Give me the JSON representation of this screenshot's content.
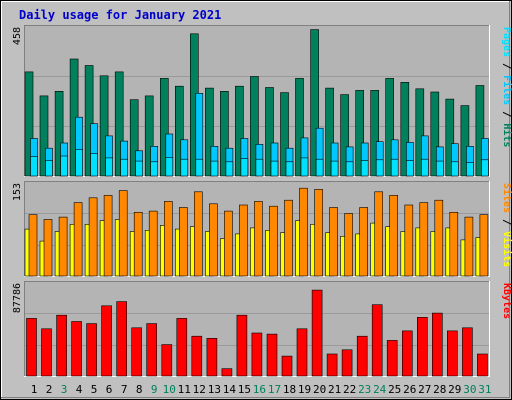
{
  "title": "Daily usage for January 2021",
  "colors": {
    "background": "#c0c0c0",
    "panel": "#b4b4b4",
    "title": "#0000cc",
    "hits": "#00805c",
    "files": "#00c8ff",
    "pages": "#00e0ff",
    "visits": "#ffff00",
    "sites": "#ff8800",
    "kbytes": "#ff0000",
    "weekend_day": "#00805c",
    "weekday": "#000000"
  },
  "chart_data": [
    {
      "type": "bar",
      "name": "hits-files-pages",
      "categories": [
        "1",
        "2",
        "3",
        "4",
        "5",
        "6",
        "7",
        "8",
        "9",
        "10",
        "11",
        "12",
        "13",
        "14",
        "15",
        "16",
        "17",
        "18",
        "19",
        "20",
        "21",
        "22",
        "23",
        "24",
        "25",
        "26",
        "27",
        "28",
        "29",
        "30",
        "31"
      ],
      "ylabel_parts": [
        "Pages",
        "Files",
        "Hits"
      ],
      "ymax_label": "458",
      "ylim": [
        0,
        458
      ],
      "series": [
        {
          "name": "Hits",
          "values": [
            322,
            248,
            262,
            362,
            342,
            310,
            322,
            236,
            248,
            302,
            278,
            440,
            272,
            262,
            278,
            308,
            274,
            258,
            302,
            453,
            272,
            252,
            265,
            265,
            302,
            290,
            270,
            260,
            238,
            218,
            280
          ]
        },
        {
          "name": "Files",
          "values": [
            116,
            86,
            102,
            182,
            162,
            124,
            108,
            78,
            92,
            130,
            112,
            256,
            92,
            86,
            116,
            98,
            102,
            86,
            118,
            148,
            102,
            90,
            102,
            106,
            112,
            104,
            124,
            90,
            100,
            92,
            116
          ]
        },
        {
          "name": "Pages",
          "values": [
            60,
            48,
            62,
            82,
            70,
            56,
            52,
            46,
            44,
            58,
            52,
            52,
            46,
            44,
            54,
            52,
            46,
            44,
            56,
            52,
            46,
            44,
            48,
            50,
            52,
            48,
            52,
            46,
            44,
            42,
            50
          ]
        }
      ]
    },
    {
      "type": "bar",
      "name": "visits-sites",
      "categories": [
        "1",
        "2",
        "3",
        "4",
        "5",
        "6",
        "7",
        "8",
        "9",
        "10",
        "11",
        "12",
        "13",
        "14",
        "15",
        "16",
        "17",
        "18",
        "19",
        "20",
        "21",
        "22",
        "23",
        "24",
        "25",
        "26",
        "27",
        "28",
        "29",
        "30",
        "31"
      ],
      "ylabel_parts": [
        "Sites",
        "Visits"
      ],
      "ymax_label": "153",
      "ylim": [
        0,
        153
      ],
      "series": [
        {
          "name": "Visits",
          "values": [
            78,
            58,
            74,
            86,
            86,
            92,
            94,
            74,
            76,
            84,
            78,
            82,
            74,
            62,
            70,
            80,
            76,
            72,
            92,
            86,
            72,
            66,
            70,
            88,
            82,
            74,
            80,
            74,
            80,
            60,
            64
          ]
        },
        {
          "name": "Sites",
          "values": [
            102,
            94,
            98,
            122,
            130,
            134,
            142,
            106,
            108,
            124,
            114,
            140,
            120,
            108,
            118,
            124,
            116,
            126,
            146,
            144,
            114,
            104,
            114,
            140,
            134,
            118,
            122,
            126,
            106,
            98,
            102
          ]
        }
      ]
    },
    {
      "type": "bar",
      "name": "kbytes",
      "categories": [
        "1",
        "2",
        "3",
        "4",
        "5",
        "6",
        "7",
        "8",
        "9",
        "10",
        "11",
        "12",
        "13",
        "14",
        "15",
        "16",
        "17",
        "18",
        "19",
        "20",
        "21",
        "22",
        "23",
        "24",
        "25",
        "26",
        "27",
        "28",
        "29",
        "30",
        "31"
      ],
      "ylabel_parts": [
        "KBytes"
      ],
      "ymax_label": "87786",
      "ylim": [
        0,
        87786
      ],
      "series": [
        {
          "name": "KBytes",
          "values": [
            55000,
            45000,
            58000,
            52000,
            50000,
            67000,
            71000,
            46000,
            50000,
            30000,
            55000,
            38000,
            36000,
            7000,
            58000,
            41000,
            40000,
            19000,
            45000,
            82000,
            21000,
            25000,
            38000,
            68000,
            34000,
            43000,
            56000,
            60000,
            43000,
            46000,
            21000
          ]
        }
      ]
    }
  ],
  "x_label_colors": [
    "weekday",
    "weekday",
    "weekend_day",
    "weekday",
    "weekday",
    "weekday",
    "weekday",
    "weekday",
    "weekend_day",
    "weekend_day",
    "weekday",
    "weekday",
    "weekday",
    "weekday",
    "weekday",
    "weekend_day",
    "weekend_day",
    "weekday",
    "weekday",
    "weekday",
    "weekday",
    "weekday",
    "weekend_day",
    "weekend_day",
    "weekday",
    "weekday",
    "weekday",
    "weekday",
    "weekday",
    "weekend_day",
    "weekend_day"
  ]
}
